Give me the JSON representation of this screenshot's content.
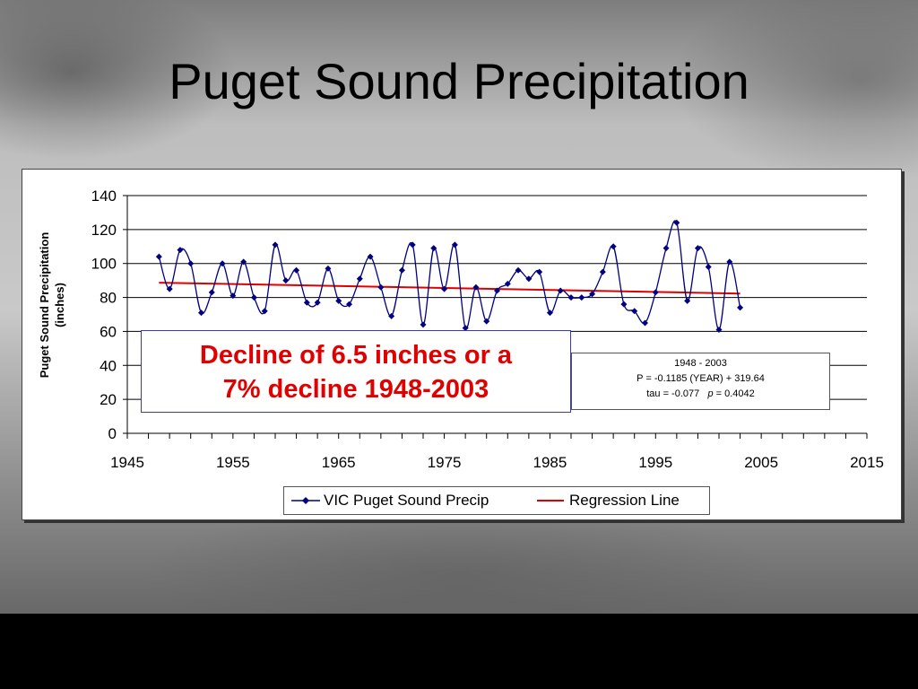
{
  "slide": {
    "title": "Puget Sound Precipitation"
  },
  "callout": {
    "line1": "Decline of 6.5 inches or a",
    "line2": "7% decline 1948-2003"
  },
  "stats": {
    "line1": "1948 - 2003",
    "line2": "P = -0.1185 (YEAR) + 319.64",
    "line3_prefix": "tau = -0.077",
    "line3_p": "p",
    "line3_suffix": " = 0.4042"
  },
  "colors": {
    "series": "#000080",
    "regression": "#e00000",
    "callout_text": "#e00000"
  },
  "chart_data": {
    "type": "line",
    "title": "",
    "ylabel": "Puget Sound Precipitation (inches)",
    "xlabel": "",
    "xlim": [
      1945,
      2015
    ],
    "ylim": [
      0,
      140
    ],
    "xticks": [
      1945,
      1955,
      1965,
      1975,
      1985,
      1995,
      2005,
      2015
    ],
    "yticks": [
      0,
      20,
      40,
      60,
      80,
      100,
      120,
      140
    ],
    "grid": true,
    "legend_position": "bottom",
    "series": [
      {
        "name": "VIC Puget Sound Precip",
        "x": [
          1948,
          1949,
          1950,
          1951,
          1952,
          1953,
          1954,
          1955,
          1956,
          1957,
          1958,
          1959,
          1960,
          1961,
          1962,
          1963,
          1964,
          1965,
          1966,
          1967,
          1968,
          1969,
          1970,
          1971,
          1972,
          1973,
          1974,
          1975,
          1976,
          1977,
          1978,
          1979,
          1980,
          1981,
          1982,
          1983,
          1984,
          1985,
          1986,
          1987,
          1988,
          1989,
          1990,
          1991,
          1992,
          1993,
          1994,
          1995,
          1996,
          1997,
          1998,
          1999,
          2000,
          2001,
          2002,
          2003
        ],
        "y": [
          104,
          85,
          108,
          100,
          71,
          83,
          100,
          81,
          101,
          80,
          72,
          111,
          90,
          96,
          77,
          77,
          97,
          78,
          76,
          91,
          104,
          86,
          69,
          96,
          111,
          64,
          109,
          85,
          111,
          62,
          86,
          66,
          84,
          88,
          96,
          91,
          95,
          71,
          84,
          80,
          80,
          82,
          95,
          110,
          76,
          72,
          65,
          83,
          109,
          124,
          78,
          109,
          98,
          61,
          101,
          74
        ],
        "marker": "diamond"
      },
      {
        "name": "Regression Line",
        "x": [
          1948,
          2003
        ],
        "y": [
          88.7,
          82.3
        ],
        "marker": "none"
      }
    ]
  }
}
